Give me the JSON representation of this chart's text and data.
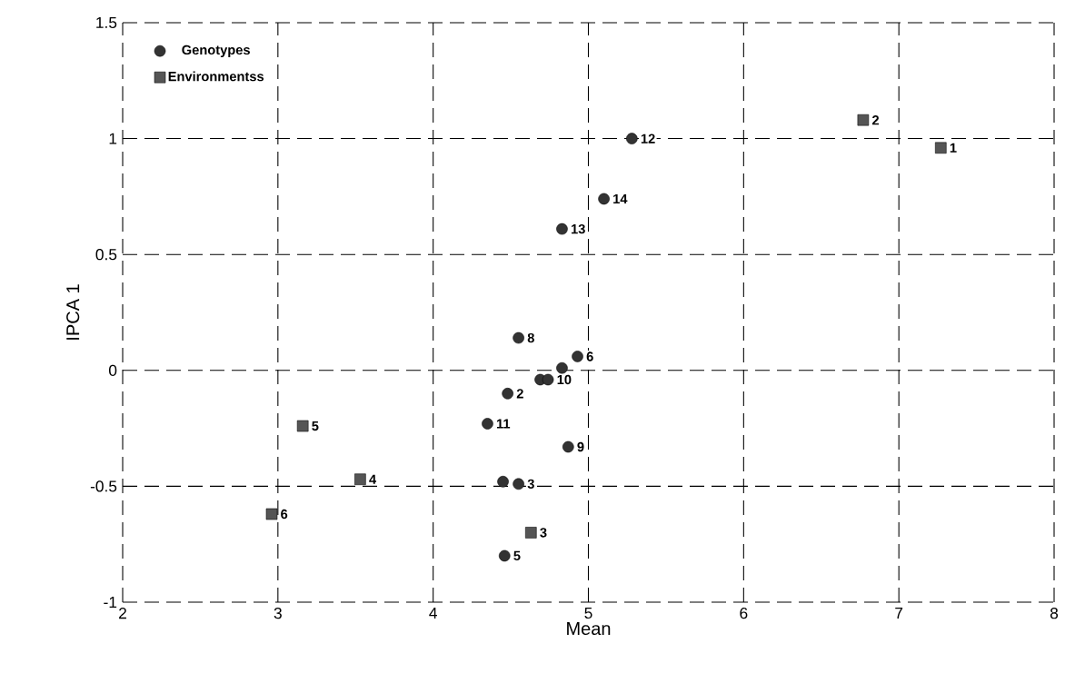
{
  "chart_data": {
    "type": "scatter",
    "xlabel": "Mean",
    "ylabel": "IPCA 1",
    "xlim": [
      2,
      8
    ],
    "ylim": [
      -1,
      1.5
    ],
    "xticks": [
      2,
      3,
      4,
      5,
      6,
      7,
      8
    ],
    "yticks": [
      -1,
      -0.5,
      0,
      0.5,
      1,
      1.5
    ],
    "grid": true,
    "legend": "top left",
    "line_style": "dashed",
    "series": [
      {
        "name": "Genotypes",
        "color": "#333333",
        "marker": "circle",
        "x": [
          4.55,
          4.93,
          4.83,
          4.69,
          4.74,
          4.48,
          4.35,
          4.87,
          4.45,
          4.55,
          4.46,
          5.28,
          5.1,
          4.83
        ],
        "values": [
          0.14,
          0.06,
          0.01,
          -0.04,
          -0.04,
          -0.1,
          -0.23,
          -0.33,
          -0.48,
          -0.49,
          -0.8,
          1.0,
          0.74,
          0.61
        ]
      },
      {
        "name": "Environmentss",
        "color": "#555555",
        "marker": "square",
        "x": [
          7.27,
          6.77,
          4.63,
          3.53,
          3.16,
          2.96
        ],
        "values": [
          0.96,
          1.08,
          -0.7,
          -0.47,
          -0.24,
          -0.62
        ]
      }
    ],
    "annotations": [
      {
        "text": "8",
        "x": 4.55,
        "y": 0.14
      },
      {
        "text": "6",
        "x": 4.93,
        "y": 0.06
      },
      {
        "text": "10",
        "x": 4.74,
        "y": -0.04
      },
      {
        "text": "2",
        "x": 4.48,
        "y": -0.1
      },
      {
        "text": "11",
        "x": 4.35,
        "y": -0.23
      },
      {
        "text": "9",
        "x": 4.87,
        "y": -0.33
      },
      {
        "text": "3",
        "x": 4.55,
        "y": -0.49
      },
      {
        "text": "5",
        "x": 4.46,
        "y": -0.8
      },
      {
        "text": "12",
        "x": 5.28,
        "y": 1.0
      },
      {
        "text": "14",
        "x": 5.1,
        "y": 0.74
      },
      {
        "text": "13",
        "x": 4.83,
        "y": 0.61
      },
      {
        "text": "1",
        "x": 7.27,
        "y": 0.96
      },
      {
        "text": "2",
        "x": 6.77,
        "y": 1.08
      },
      {
        "text": "3",
        "x": 4.63,
        "y": -0.7
      },
      {
        "text": "4",
        "x": 3.53,
        "y": -0.47
      },
      {
        "text": "5",
        "x": 3.16,
        "y": -0.24
      },
      {
        "text": "6",
        "x": 2.96,
        "y": -0.62
      }
    ]
  }
}
